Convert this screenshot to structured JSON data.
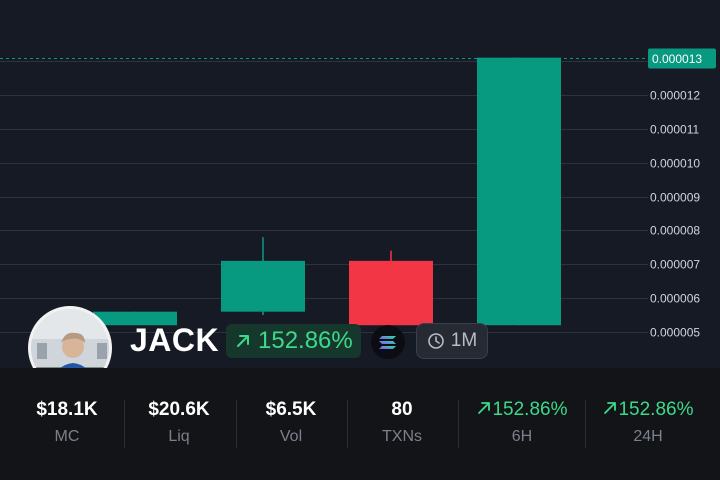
{
  "chart_data": {
    "type": "candlestick",
    "y_ticks": [
      "0.000005",
      "0.000006",
      "0.000007",
      "0.000008",
      "0.000009",
      "0.000010",
      "0.000011",
      "0.000012",
      "0.000013"
    ],
    "y_range": [
      4.6e-06,
      1.37e-05
    ],
    "current_price_label": "0.000013",
    "current_price": 1.31e-05,
    "candles": [
      {
        "open": 5.2e-06,
        "close": 5.6e-06,
        "high": 5.6e-06,
        "low": 5.2e-06
      },
      {
        "open": 5.6e-06,
        "close": 7.1e-06,
        "high": 7.8e-06,
        "low": 5.5e-06
      },
      {
        "open": 7.1e-06,
        "close": 5.2e-06,
        "high": 7.4e-06,
        "low": 5.2e-06
      },
      {
        "open": 5.2e-06,
        "close": 1.31e-05,
        "high": 1.31e-05,
        "low": 5.2e-06
      }
    ],
    "colors": {
      "up": "#089981",
      "down": "#f23645",
      "grid": "#2e323d",
      "axis_text": "#d1d4dc",
      "price_tag": "#089981"
    }
  },
  "token": {
    "name": "JACK",
    "change": "152.86%",
    "timeframe": "1M"
  },
  "stats": [
    {
      "value": "$18.1K",
      "label": "MC"
    },
    {
      "value": "$20.6K",
      "label": "Liq"
    },
    {
      "value": "$6.5K",
      "label": "Vol"
    },
    {
      "value": "80",
      "label": "TXNs"
    },
    {
      "value": "152.86%",
      "label": "6H"
    },
    {
      "value": "152.86%",
      "label": "24H"
    }
  ],
  "icons": {
    "change_arrow": "arrow-up-right-icon",
    "chain": "solana-icon",
    "timeframe": "clock-icon"
  }
}
